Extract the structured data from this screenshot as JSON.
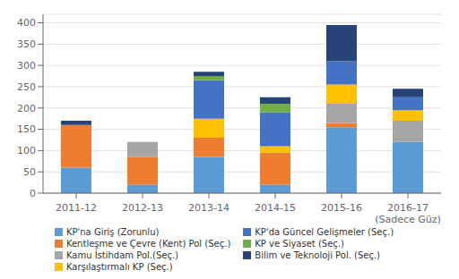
{
  "chart_data": {
    "type": "bar",
    "stacked": true,
    "grid": true,
    "legend": "bottom",
    "categories": [
      "2011-12",
      "2012-13",
      "2013-14",
      "2014-15",
      "2015-16",
      "2016-17\n(Sadece Güz)"
    ],
    "series": [
      {
        "name": "KP'na Giriş (Zorunlu)",
        "color": "#5b9bd5",
        "values": [
          60,
          20,
          85,
          20,
          155,
          120
        ]
      },
      {
        "name": "Kentleşme ve Çevre (Kent) Pol (Seç.)",
        "color": "#ed7d31",
        "values": [
          100,
          65,
          45,
          75,
          10,
          0
        ]
      },
      {
        "name": "Kamu İstihdam Pol.(Seç.)",
        "color": "#a5a5a5",
        "values": [
          0,
          35,
          0,
          0,
          45,
          50
        ]
      },
      {
        "name": "Karşılaştırmalı KP (Seç.)",
        "color": "#ffc000",
        "values": [
          0,
          0,
          45,
          15,
          45,
          25
        ]
      },
      {
        "name": "KP'da Güncel Gelişmeler (Seç.)",
        "color": "#4472c4",
        "values": [
          0,
          0,
          90,
          80,
          55,
          30
        ]
      },
      {
        "name": "KP ve Siyaset (Seç.)",
        "color": "#70ad47",
        "values": [
          0,
          0,
          10,
          20,
          0,
          0
        ]
      },
      {
        "name": "Bilim ve Teknoloji Pol. (Seç.)",
        "color": "#264478",
        "values": [
          10,
          0,
          10,
          15,
          85,
          20
        ]
      }
    ],
    "ylim": [
      0,
      420
    ],
    "yticks": [
      0,
      50,
      100,
      150,
      200,
      250,
      300,
      350,
      400
    ]
  }
}
